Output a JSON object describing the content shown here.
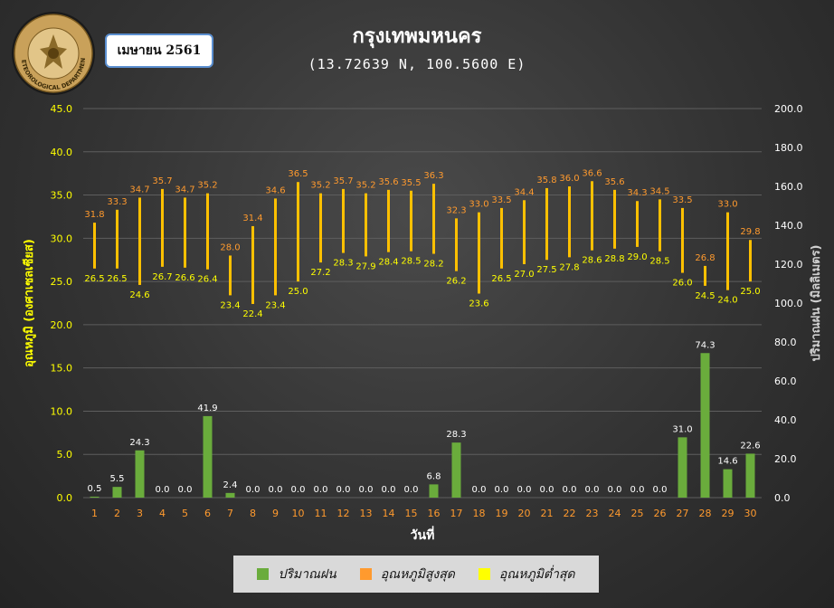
{
  "header": {
    "month": "เมษายน 2561",
    "title": "กรุงเทพมหนคร",
    "subtitle": "(13.72639 N, 100.5600 E)",
    "logo_text": "METEOROLOGICAL DEPARTMENT"
  },
  "colors": {
    "rain": "#6aac3c",
    "tmax": "#ff9a2e",
    "tmin": "#ffff00",
    "temp_bar": "#ffc000",
    "left_axis_text": "#ffff00",
    "right_axis_text": "#ffffff",
    "x_tick_text": "#ff9a2e",
    "gridline": "#5e5e5e"
  },
  "legend": [
    {
      "label": "ปริมาณฝน",
      "color": "#6aac3c"
    },
    {
      "label": "อุณหภูมิสูงสุด",
      "color": "#ff9a2e"
    },
    {
      "label": "อุณหภูมิต่ำสุด",
      "color": "#ffff00"
    }
  ],
  "chart_data": {
    "type": "bar",
    "xlabel": "วันที่",
    "ylabel_left": "อุณหภูมิ (องศาเซลเซียส)",
    "ylabel_right": "ปริมาณฝน (มิลลิเมตร)",
    "ylim_left": [
      0,
      45
    ],
    "ylim_right": [
      0,
      200
    ],
    "yticks_left": [
      "0.0",
      "5.0",
      "10.0",
      "15.0",
      "20.0",
      "25.0",
      "30.0",
      "35.0",
      "40.0",
      "45.0"
    ],
    "yticks_right": [
      "0.0",
      "20.0",
      "40.0",
      "60.0",
      "80.0",
      "100.0",
      "120.0",
      "140.0",
      "160.0",
      "180.0",
      "200.0"
    ],
    "grid": true,
    "legend_position": "bottom",
    "categories": [
      "1",
      "2",
      "3",
      "4",
      "5",
      "6",
      "7",
      "8",
      "9",
      "10",
      "11",
      "12",
      "13",
      "14",
      "15",
      "16",
      "17",
      "18",
      "19",
      "20",
      "21",
      "22",
      "23",
      "24",
      "25",
      "26",
      "27",
      "28",
      "29",
      "30"
    ],
    "series": [
      {
        "name": "ปริมาณฝน",
        "axis": "right",
        "labels": [
          "0.5",
          "5.5",
          "24.3",
          "0.0",
          "0.0",
          "41.9",
          "2.4",
          "0.0",
          "0.0",
          "0.0",
          "0.0",
          "0.0",
          "0.0",
          "0.0",
          "0.0",
          "6.8",
          "28.3",
          "0.0",
          "0.0",
          "0.0",
          "0.0",
          "0.0",
          "0.0",
          "0.0",
          "0.0",
          "0.0",
          "31.0",
          "74.3",
          "14.6",
          "22.6"
        ],
        "values": [
          0.5,
          5.5,
          24.3,
          0,
          0,
          41.9,
          2.4,
          0,
          0,
          0,
          0,
          0,
          0,
          0,
          0,
          6.8,
          28.3,
          0,
          0,
          0,
          0,
          0,
          0,
          0,
          0,
          0,
          31.0,
          74.3,
          14.6,
          22.6
        ]
      },
      {
        "name": "อุณหภูมิสูงสุด",
        "axis": "left",
        "labels": [
          "31.8",
          "33.3",
          "34.7",
          "35.7",
          "34.7",
          "35.2",
          "28.0",
          "31.4",
          "34.6",
          "36.5",
          "35.2",
          "35.7",
          "35.2",
          "35.6",
          "35.5",
          "36.3",
          "32.3",
          "33.0",
          "33.5",
          "34.4",
          "35.8",
          "36.0",
          "36.6",
          "35.6",
          "34.3",
          "34.5",
          "33.5",
          "26.8",
          "33.0",
          "29.8"
        ],
        "values": [
          31.8,
          33.3,
          34.7,
          35.7,
          34.7,
          35.2,
          28.0,
          31.4,
          34.6,
          36.5,
          35.2,
          35.7,
          35.2,
          35.6,
          35.5,
          36.3,
          32.3,
          33.0,
          33.5,
          34.4,
          35.8,
          36.0,
          36.6,
          35.6,
          34.3,
          34.5,
          33.5,
          26.8,
          33.0,
          29.8
        ]
      },
      {
        "name": "อุณหภูมิต่ำสุด",
        "axis": "left",
        "labels": [
          "26.5",
          "26.5",
          "24.6",
          "26.7",
          "26.6",
          "26.4",
          "23.4",
          "22.4",
          "23.4",
          "25.0",
          "27.2",
          "28.3",
          "27.9",
          "28.4",
          "28.5",
          "28.2",
          "26.2",
          "23.6",
          "26.5",
          "27.0",
          "27.5",
          "27.8",
          "28.6",
          "28.8",
          "29.0",
          "28.5",
          "26.0",
          "24.5",
          "24.0",
          "25.0"
        ],
        "values": [
          26.5,
          26.5,
          24.6,
          26.7,
          26.6,
          26.4,
          23.4,
          22.4,
          23.4,
          25.0,
          27.2,
          28.3,
          27.9,
          28.4,
          28.5,
          28.2,
          26.2,
          23.6,
          26.5,
          27.0,
          27.5,
          27.8,
          28.6,
          28.8,
          29.0,
          28.5,
          26.0,
          24.5,
          24.0,
          25.0
        ]
      }
    ]
  }
}
